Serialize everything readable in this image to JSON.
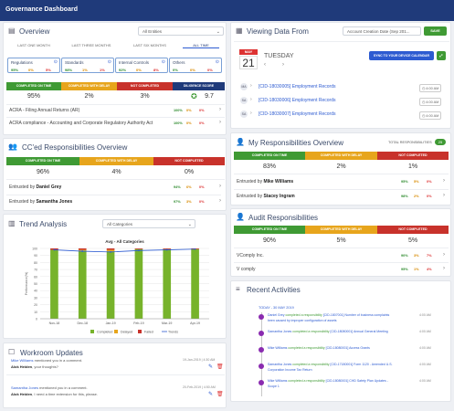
{
  "app": {
    "title": "Governance Dashboard"
  },
  "overview": {
    "title": "Overview",
    "filter": "All Entities",
    "tabs": [
      "LAST ONE MONTH",
      "LAST THREE MONTHS",
      "LAST SIX MONTHS",
      "ALL TIME"
    ],
    "boxes": [
      {
        "label": "Regulations",
        "v": [
          "95%",
          "0%",
          "5%"
        ]
      },
      {
        "label": "Standards",
        "v": [
          "98%",
          "1%",
          "1%"
        ]
      },
      {
        "label": "Internal Controls",
        "v": [
          "92%",
          "0%",
          "8%"
        ]
      },
      {
        "label": "Others",
        "v": [
          "0%",
          "0%",
          "0%"
        ]
      }
    ],
    "stat_headers": [
      "COMPLETED ON TIME",
      "COMPLETED WITH DELAY",
      "NOT COMPLETED",
      "DILIGENCE SCORE"
    ],
    "stat_values": [
      "95%",
      "2%",
      "3%",
      "9.7"
    ],
    "rows": [
      {
        "label": "ACRA - Filing Annual Returns (AR)",
        "v": [
          "100%",
          "0%",
          "0%"
        ]
      },
      {
        "label": "ACRA compliance - Accounting and Corporate Regulatory Authority Act",
        "v": [
          "100%",
          "0%",
          "0%"
        ]
      }
    ]
  },
  "ccd": {
    "title": "CC'ed Responsibilities Overview",
    "headers": [
      "COMPLETED ON TIME",
      "COMPLETED WITH DELAY",
      "NOT COMPLETED"
    ],
    "values": [
      "96%",
      "4%",
      "0%"
    ],
    "rows": [
      {
        "prefix": "Entrusted by ",
        "name": "Daniel Grey",
        "v": [
          "94%",
          "6%",
          "0%"
        ]
      },
      {
        "prefix": "Entrusted by ",
        "name": "Samantha Jones",
        "v": [
          "97%",
          "3%",
          "0%"
        ]
      }
    ]
  },
  "trend": {
    "title": "Trend Analysis",
    "filter": "All Categories"
  },
  "chart_data": {
    "type": "bar",
    "title": "Avg - All Categories",
    "ylabel": "Performance(%)",
    "ylim": [
      0,
      100
    ],
    "x": [
      "Nov-18",
      "Dec-18",
      "Jan-19",
      "Feb-19",
      "Mar-19",
      "Apr-19"
    ],
    "categories": [
      "Nov-18",
      "Dec-18",
      "Jan-19",
      "Feb-19",
      "Mar-19",
      "Apr-19"
    ],
    "series": [
      {
        "name": "Completed",
        "color": "#77b32b",
        "values": [
          98,
          97,
          96,
          99,
          99,
          99
        ]
      },
      {
        "name": "Delayed",
        "color": "#e7a51c",
        "values": [
          0,
          1,
          2,
          0,
          0,
          0
        ]
      },
      {
        "name": "Failed",
        "color": "#c8322b",
        "values": [
          2,
          2,
          2,
          1,
          1,
          1
        ]
      },
      {
        "name": "Trends",
        "color": "#2d5bd1",
        "values": [
          98,
          96,
          95,
          97,
          98,
          99
        ]
      }
    ],
    "ticks": [
      "0",
      "10",
      "20",
      "30",
      "40",
      "50",
      "60",
      "70",
      "80",
      "90",
      "100"
    ],
    "grid": true,
    "legend": "bottom"
  },
  "workroom": {
    "title": "Workroom Updates",
    "items": [
      {
        "a": "Mike Williams",
        "t1": " mentioned you in a comment.",
        "b": "Alok Heiden",
        "t2": ", your thoughts?",
        "date": "19-Jan-2019 | 4:30 AM"
      },
      {
        "a": "Samantha Jones",
        "t1": " mentioned you in a comment.",
        "b": "Alok Heiden",
        "t2": ", I need a time extension for this, please.",
        "date": "20-Feb-2019 | 4:50 AM"
      }
    ]
  },
  "viewing": {
    "title": "Viewing Data From",
    "filter": "Account Creation Date (Sep 201...",
    "save": "SAVE",
    "month": "MAY",
    "day": "21",
    "weekday": "TUESDAY",
    "sync": "SYNC TO YOUR DEVICE CALENDAR",
    "items": [
      {
        "tag": "MA",
        "label": "[CID-18030005] Employment Records",
        "time": "4:00 AM"
      },
      {
        "tag": "SA",
        "label": "[CID-18030006] Employment Records",
        "time": "4:00 AM"
      },
      {
        "tag": "SA",
        "label": "[CID-18030007] Employment Records",
        "time": "4:00 AM"
      }
    ]
  },
  "myresp": {
    "title": "My Responsibilities Overview",
    "total_label": "TOTAL RESPONSIBILITIES",
    "total": "25",
    "headers": [
      "COMPLETED ON TIME",
      "COMPLETED WITH DELAY",
      "NOT COMPLETED"
    ],
    "values": [
      "83%",
      "2%",
      "1%"
    ],
    "rows": [
      {
        "prefix": "Entrusted by ",
        "name": "Mike Williams",
        "v": [
          "95%",
          "5%",
          "0%"
        ]
      },
      {
        "prefix": "Entrusted by ",
        "name": "Stacey Ingram",
        "v": [
          "98%",
          "2%",
          "0%"
        ]
      }
    ]
  },
  "audit": {
    "title": "Audit Responsibilities",
    "headers": [
      "COMPLETED ON TIME",
      "COMPLETED WITH DELAY",
      "NOT COMPLETED"
    ],
    "values": [
      "90%",
      "5%",
      "5%"
    ],
    "rows": [
      {
        "label": "VComply Inc.",
        "v": [
          "90%",
          "3%",
          "7%"
        ]
      },
      {
        "label": "V comply",
        "v": [
          "95%",
          "1%",
          "4%"
        ]
      }
    ]
  },
  "activities": {
    "title": "Recent Activities",
    "range": "TODAY - 30 MAY 2019",
    "items": [
      {
        "who": "Daniel Grey",
        "what": " completed a responsibility ",
        "ref": "[CID-1807001] Number of business complaints",
        "extra": "been caused by improper configuration of assets",
        "time": "4:00 AM"
      },
      {
        "who": "Samantha Jones",
        "what": " completed a responsibility ",
        "ref": "[CID-18080001] Annual General Meeting",
        "extra": "",
        "time": "4:00 AM"
      },
      {
        "who": "Mike Williams",
        "what": " completed a responsibility ",
        "ref": "[CID-18080001] Access Grants",
        "extra": "",
        "time": "4:00 AM"
      },
      {
        "who": "Samantha Jones",
        "what": " completed a responsibility ",
        "ref": "[CID-17180001] Form 1120 - Amended U.S.",
        "extra": "Corporation Income Tax Return",
        "time": "4:00 AM"
      },
      {
        "who": "Mike Williams",
        "what": " completed a responsibility ",
        "ref": "[CID-18080001] CHD Safety Plan Updates -",
        "extra": "Scope 1",
        "time": "4:00 AM"
      }
    ]
  }
}
